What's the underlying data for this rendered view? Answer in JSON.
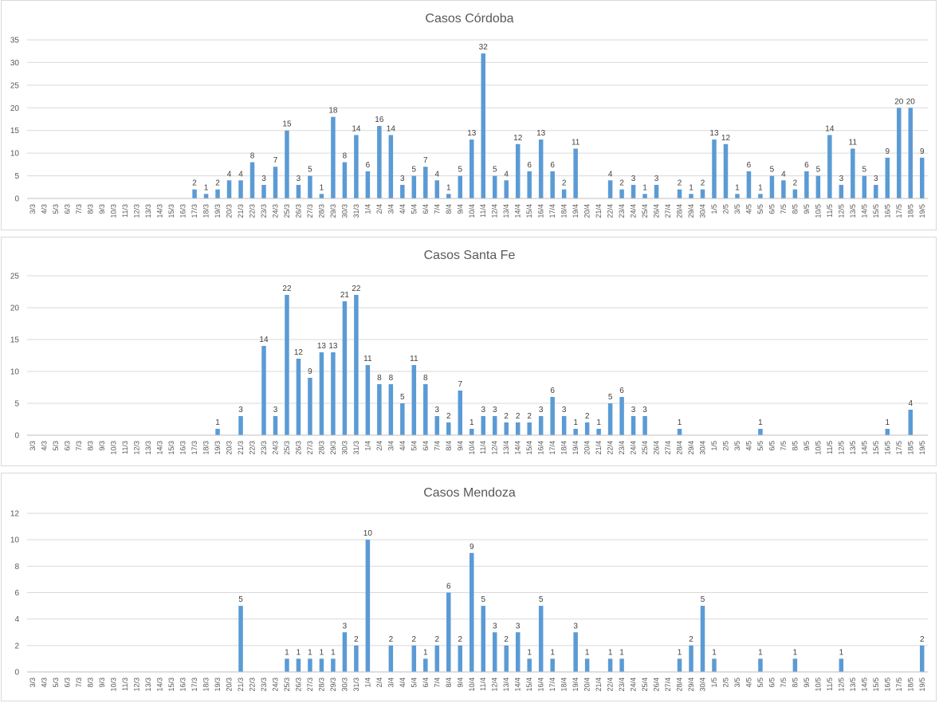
{
  "chart_data": [
    {
      "type": "bar",
      "title": "Casos Córdoba",
      "xlabel": "",
      "ylabel": "",
      "ylim": [
        0,
        35
      ],
      "yticks": [
        0,
        5,
        10,
        15,
        20,
        25,
        30,
        35
      ],
      "color": "#5b9bd5",
      "gridlines": true,
      "legend": "none",
      "categories": [
        "3/3",
        "4/3",
        "5/3",
        "6/3",
        "7/3",
        "8/3",
        "9/3",
        "10/3",
        "11/3",
        "12/3",
        "13/3",
        "14/3",
        "15/3",
        "16/3",
        "17/3",
        "18/3",
        "19/3",
        "20/3",
        "21/3",
        "22/3",
        "23/3",
        "24/3",
        "25/3",
        "26/3",
        "27/3",
        "28/3",
        "29/3",
        "30/3",
        "31/3",
        "1/4",
        "2/4",
        "3/4",
        "4/4",
        "5/4",
        "6/4",
        "7/4",
        "8/4",
        "9/4",
        "10/4",
        "11/4",
        "12/4",
        "13/4",
        "14/4",
        "15/4",
        "16/4",
        "17/4",
        "18/4",
        "19/4",
        "20/4",
        "21/4",
        "22/4",
        "23/4",
        "24/4",
        "25/4",
        "26/4",
        "27/4",
        "28/4",
        "29/4",
        "30/4",
        "1/5",
        "2/5",
        "3/5",
        "4/5",
        "5/5",
        "6/5",
        "7/5",
        "8/5",
        "9/5",
        "10/5",
        "11/5",
        "12/5",
        "13/5",
        "14/5",
        "15/5",
        "16/5",
        "17/5",
        "18/5",
        "19/5"
      ],
      "values": [
        0,
        0,
        0,
        0,
        0,
        0,
        0,
        0,
        0,
        0,
        0,
        0,
        0,
        0,
        2,
        1,
        2,
        4,
        4,
        8,
        3,
        7,
        15,
        3,
        5,
        1,
        18,
        8,
        14,
        6,
        16,
        14,
        3,
        5,
        7,
        4,
        1,
        5,
        13,
        32,
        5,
        4,
        12,
        6,
        13,
        6,
        2,
        11,
        0,
        0,
        4,
        2,
        3,
        1,
        3,
        0,
        2,
        1,
        2,
        13,
        12,
        1,
        6,
        1,
        5,
        4,
        2,
        6,
        5,
        14,
        3,
        11,
        5,
        3,
        9,
        20,
        20,
        9
      ]
    },
    {
      "type": "bar",
      "title": "Casos Santa Fe",
      "xlabel": "",
      "ylabel": "",
      "ylim": [
        0,
        25
      ],
      "yticks": [
        0,
        5,
        10,
        15,
        20,
        25
      ],
      "color": "#5b9bd5",
      "gridlines": true,
      "legend": "none",
      "categories": [
        "3/3",
        "4/3",
        "5/3",
        "6/3",
        "7/3",
        "8/3",
        "9/3",
        "10/3",
        "11/3",
        "12/3",
        "13/3",
        "14/3",
        "15/3",
        "16/3",
        "17/3",
        "18/3",
        "19/3",
        "20/3",
        "21/3",
        "22/3",
        "23/3",
        "24/3",
        "25/3",
        "26/3",
        "27/3",
        "28/3",
        "29/3",
        "30/3",
        "31/3",
        "1/4",
        "2/4",
        "3/4",
        "4/4",
        "5/4",
        "6/4",
        "7/4",
        "8/4",
        "9/4",
        "10/4",
        "11/4",
        "12/4",
        "13/4",
        "14/4",
        "15/4",
        "16/4",
        "17/4",
        "18/4",
        "19/4",
        "20/4",
        "21/4",
        "22/4",
        "23/4",
        "24/4",
        "25/4",
        "26/4",
        "27/4",
        "28/4",
        "29/4",
        "30/4",
        "1/5",
        "2/5",
        "3/5",
        "4/5",
        "5/5",
        "6/5",
        "7/5",
        "8/5",
        "9/5",
        "10/5",
        "11/5",
        "12/5",
        "13/5",
        "14/5",
        "15/5",
        "16/5",
        "17/5",
        "18/5",
        "19/5"
      ],
      "values": [
        0,
        0,
        0,
        0,
        0,
        0,
        0,
        0,
        0,
        0,
        0,
        0,
        0,
        0,
        0,
        0,
        1,
        0,
        3,
        0,
        14,
        3,
        22,
        12,
        9,
        13,
        13,
        21,
        22,
        11,
        8,
        8,
        5,
        11,
        8,
        3,
        2,
        7,
        1,
        3,
        3,
        2,
        2,
        2,
        3,
        6,
        3,
        1,
        2,
        1,
        5,
        6,
        3,
        3,
        0,
        0,
        1,
        0,
        0,
        0,
        0,
        0,
        0,
        1,
        0,
        0,
        0,
        0,
        0,
        0,
        0,
        0,
        0,
        0,
        1,
        0,
        4,
        0
      ]
    },
    {
      "type": "bar",
      "title": "Casos Mendoza",
      "xlabel": "",
      "ylabel": "",
      "ylim": [
        0,
        12
      ],
      "yticks": [
        0,
        2,
        4,
        6,
        8,
        10,
        12
      ],
      "color": "#5b9bd5",
      "gridlines": true,
      "legend": "none",
      "categories": [
        "3/3",
        "4/3",
        "5/3",
        "6/3",
        "7/3",
        "8/3",
        "9/3",
        "10/3",
        "11/3",
        "12/3",
        "13/3",
        "14/3",
        "15/3",
        "16/3",
        "17/3",
        "18/3",
        "19/3",
        "20/3",
        "21/3",
        "22/3",
        "23/3",
        "24/3",
        "25/3",
        "26/3",
        "27/3",
        "28/3",
        "29/3",
        "30/3",
        "31/3",
        "1/4",
        "2/4",
        "3/4",
        "4/4",
        "5/4",
        "6/4",
        "7/4",
        "8/4",
        "9/4",
        "10/4",
        "11/4",
        "12/4",
        "13/4",
        "14/4",
        "15/4",
        "16/4",
        "17/4",
        "18/4",
        "19/4",
        "20/4",
        "21/4",
        "22/4",
        "23/4",
        "24/4",
        "25/4",
        "26/4",
        "27/4",
        "28/4",
        "29/4",
        "30/4",
        "1/5",
        "2/5",
        "3/5",
        "4/5",
        "5/5",
        "6/5",
        "7/5",
        "8/5",
        "9/5",
        "10/5",
        "11/5",
        "12/5",
        "13/5",
        "14/5",
        "15/5",
        "16/5",
        "17/5",
        "18/5",
        "19/5"
      ],
      "values": [
        0,
        0,
        0,
        0,
        0,
        0,
        0,
        0,
        0,
        0,
        0,
        0,
        0,
        0,
        0,
        0,
        0,
        0,
        5,
        0,
        0,
        0,
        1,
        1,
        1,
        1,
        1,
        3,
        2,
        10,
        0,
        2,
        0,
        2,
        1,
        2,
        6,
        2,
        9,
        5,
        3,
        2,
        3,
        1,
        5,
        1,
        0,
        3,
        1,
        0,
        1,
        1,
        0,
        0,
        0,
        0,
        1,
        2,
        5,
        1,
        0,
        0,
        0,
        1,
        0,
        0,
        1,
        0,
        0,
        0,
        1,
        0,
        0,
        0,
        0,
        0,
        0,
        2
      ]
    }
  ]
}
